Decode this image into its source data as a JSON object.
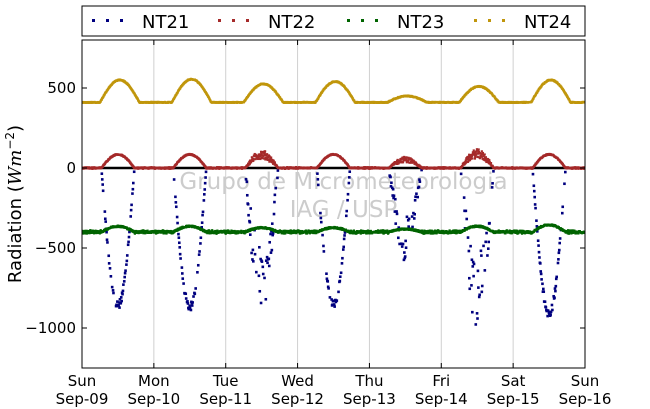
{
  "chart_data": {
    "type": "scatter",
    "ylabel": "Radiation (Wm^-2)",
    "ylabel_parts": {
      "text": "Radiation (",
      "unit": "Wm",
      "exp": "−2",
      "close": ")"
    },
    "ylim": [
      -1250,
      800
    ],
    "yticks": [
      500,
      0,
      -500,
      -1000
    ],
    "ytick_labels": [
      "500",
      "0",
      "−500",
      "−1000"
    ],
    "xlim": [
      0,
      7
    ],
    "xticks": [
      0,
      1,
      2,
      3,
      4,
      5,
      6,
      7
    ],
    "xtick_labels": [
      {
        "day": "Sun",
        "date": "Sep-09"
      },
      {
        "day": "Mon",
        "date": "Sep-10"
      },
      {
        "day": "Tue",
        "date": "Sep-11"
      },
      {
        "day": "Wed",
        "date": "Sep-12"
      },
      {
        "day": "Thu",
        "date": "Sep-13"
      },
      {
        "day": "Fri",
        "date": "Sep-14"
      },
      {
        "day": "Sat",
        "date": "Sep-15"
      },
      {
        "day": "Sun",
        "date": "Sep-16"
      }
    ],
    "grid": "vertical",
    "zero_line": true,
    "legend_placement": "top, outside plot",
    "watermark": [
      "Grupo de Micrometeorologia",
      "IAG / USP"
    ],
    "series": [
      {
        "name": "NT21",
        "color": "#00007f",
        "baseline": 0,
        "daily_min": [
          -870,
          -880,
          -880,
          -860,
          -560,
          -970,
          -920
        ]
      },
      {
        "name": "NT22",
        "color": "#a52a2a",
        "baseline": 0,
        "daily_max": [
          85,
          85,
          95,
          85,
          60,
          100,
          85
        ]
      },
      {
        "name": "NT23",
        "color": "#006400",
        "baseline": -400,
        "daily_max": [
          -360,
          -360,
          -370,
          -370,
          -380,
          -360,
          -350
        ]
      },
      {
        "name": "NT24",
        "color": "#c0960c",
        "baseline": 410,
        "daily_max": [
          550,
          555,
          525,
          540,
          450,
          510,
          550
        ]
      }
    ]
  }
}
